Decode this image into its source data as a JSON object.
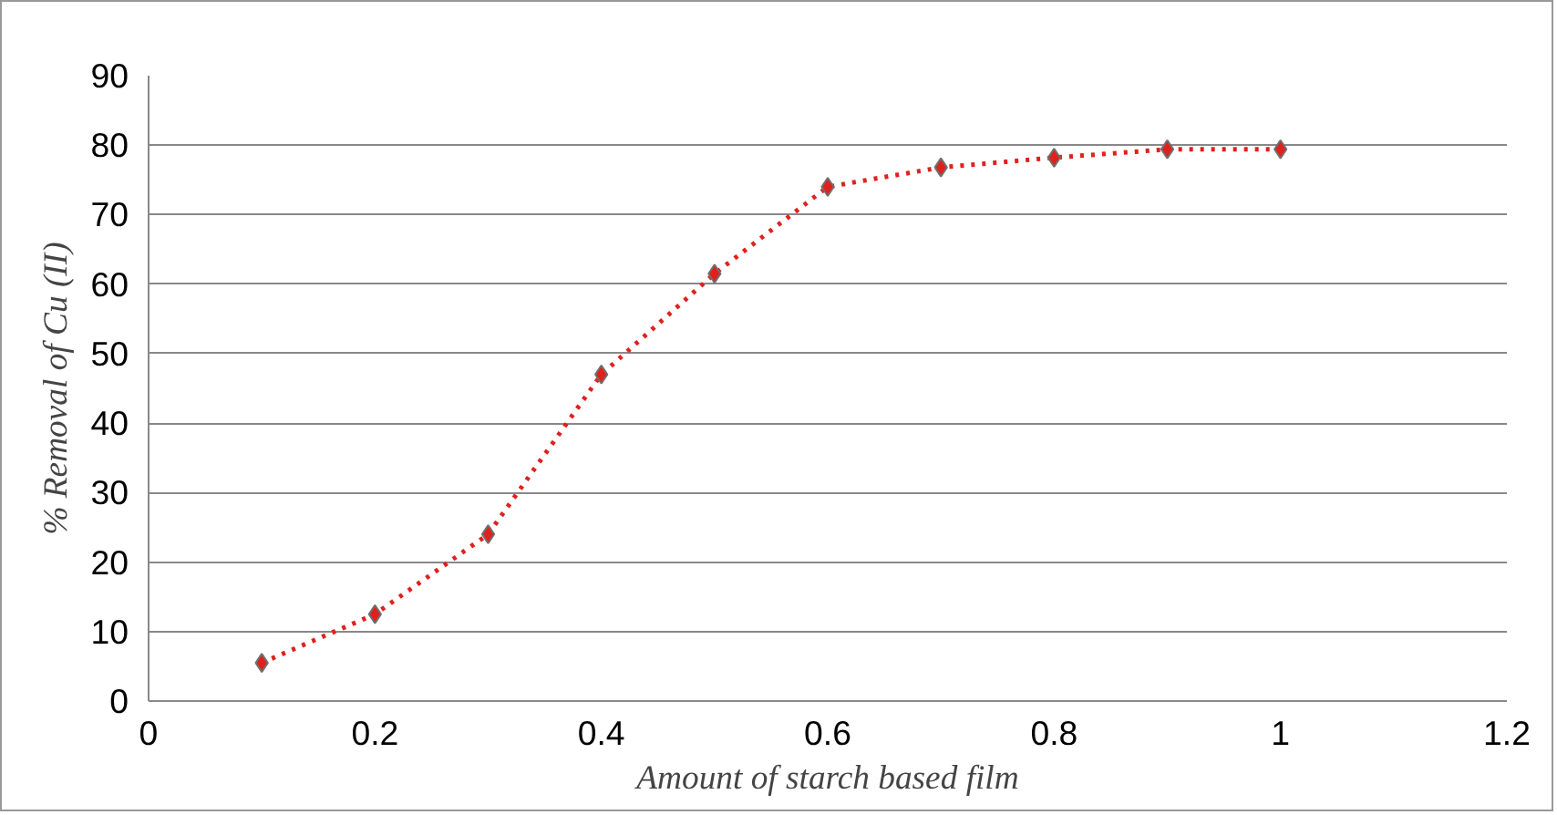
{
  "chart_data": {
    "type": "line",
    "xlabel": "Amount of starch based film",
    "ylabel": "% Removal of Cu (II)",
    "x": [
      0.1,
      0.2,
      0.3,
      0.4,
      0.5,
      0.6,
      0.7,
      0.8,
      0.9,
      1.0
    ],
    "series": [
      {
        "color": "#e0201c",
        "values": [
          5.5,
          12.5,
          24,
          47,
          61.5,
          74,
          76.8,
          78.2,
          79.4,
          79.4
        ]
      }
    ],
    "xlim": [
      0,
      1.2
    ],
    "xticks": [
      0,
      0.2,
      0.4,
      0.6,
      0.8,
      1,
      1.2
    ],
    "ylim": [
      0,
      90
    ],
    "yticks": [
      0,
      10,
      20,
      30,
      40,
      50,
      60,
      70,
      80,
      90
    ],
    "grid": "y",
    "marker": "diamond",
    "line_style": "dotted"
  }
}
